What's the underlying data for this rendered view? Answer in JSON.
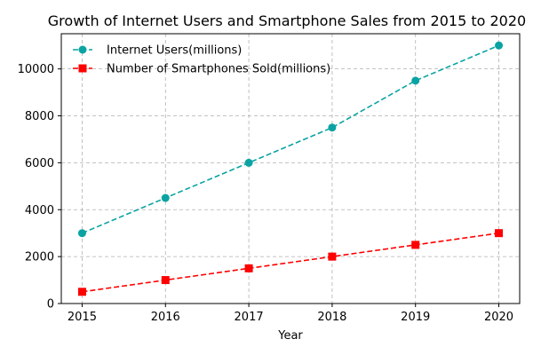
{
  "chart_data": {
    "type": "line",
    "title": "Growth of Internet Users and Smartphone Sales from 2015 to 2020",
    "xlabel": "Year",
    "ylabel": "",
    "x": [
      2015,
      2016,
      2017,
      2018,
      2019,
      2020
    ],
    "xlim": [
      2014.75,
      2020.25
    ],
    "ylim": [
      0,
      11500
    ],
    "yticks": [
      0,
      2000,
      4000,
      6000,
      8000,
      10000
    ],
    "grid": true,
    "legend_position": "top-left",
    "series": [
      {
        "name": "Internet Users(millions)",
        "values": [
          3000,
          4500,
          6000,
          7500,
          9500,
          11000
        ],
        "color": "#0aa3a3",
        "marker": "circle",
        "linestyle": "dashed"
      },
      {
        "name": "Number of Smartphones Sold(millions)",
        "values": [
          500,
          1000,
          1500,
          2000,
          2500,
          3000
        ],
        "color": "#ff0000",
        "marker": "square",
        "linestyle": "dashed"
      }
    ]
  }
}
